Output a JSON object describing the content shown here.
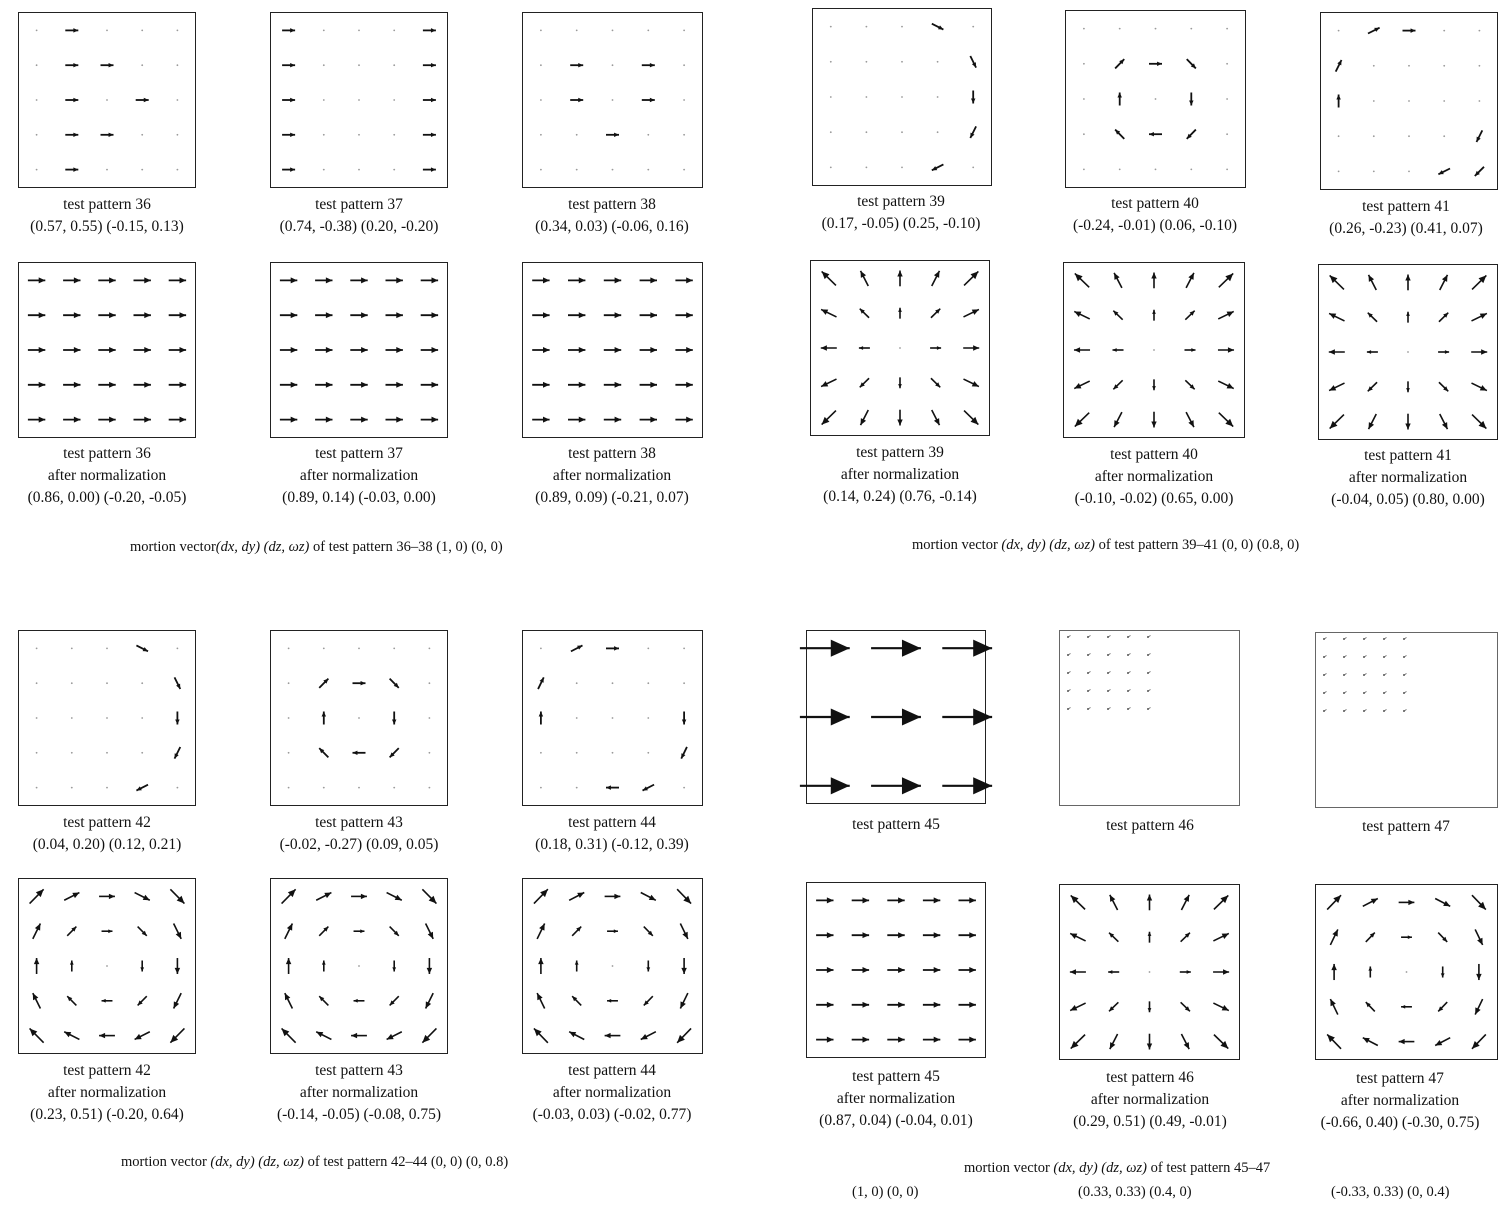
{
  "panels": [
    {
      "id": "p36",
      "title": "test pattern 36",
      "sub": "",
      "vec": "(0.57, 0.55) (-0.15, 0.13)",
      "field": {
        "grid": 5,
        "mode": "sparse",
        "cells": [
          [
            0,
            1
          ],
          [
            1,
            1
          ],
          [
            1,
            2
          ],
          [
            2,
            1
          ],
          [
            2,
            3
          ],
          [
            3,
            1
          ],
          [
            3,
            2
          ],
          [
            4,
            1
          ]
        ],
        "dir": [
          1,
          0
        ]
      }
    },
    {
      "id": "p37",
      "title": "test pattern 37",
      "sub": "",
      "vec": "(0.74, -0.38) (0.20, -0.20)",
      "field": {
        "grid": 5,
        "mode": "sparse",
        "cells": [
          [
            0,
            0
          ],
          [
            0,
            4
          ],
          [
            1,
            0
          ],
          [
            1,
            4
          ],
          [
            2,
            0
          ],
          [
            2,
            4
          ],
          [
            3,
            0
          ],
          [
            3,
            4
          ],
          [
            4,
            0
          ],
          [
            4,
            4
          ]
        ],
        "dir": [
          1,
          0
        ]
      }
    },
    {
      "id": "p38",
      "title": "test pattern 38",
      "sub": "",
      "vec": "(0.34, 0.03) (-0.06, 0.16)",
      "field": {
        "grid": 5,
        "mode": "sparse",
        "cells": [
          [
            1,
            1
          ],
          [
            1,
            3
          ],
          [
            2,
            1
          ],
          [
            2,
            3
          ],
          [
            3,
            2
          ]
        ],
        "dir": [
          1,
          0
        ]
      }
    },
    {
      "id": "p39",
      "title": "test pattern 39",
      "sub": "",
      "vec": "(0.17, -0.05) (0.25, -0.10)",
      "field": {
        "grid": 5,
        "mode": "rot-sparse",
        "cells": [
          [
            0,
            3
          ],
          [
            1,
            4
          ],
          [
            2,
            4
          ],
          [
            3,
            4
          ],
          [
            4,
            3
          ]
        ]
      }
    },
    {
      "id": "p40",
      "title": "test pattern 40",
      "sub": "",
      "vec": "(-0.24, -0.01) (0.06, -0.10)",
      "field": {
        "grid": 5,
        "mode": "rot-sparse",
        "cells": [
          [
            1,
            1
          ],
          [
            1,
            2
          ],
          [
            1,
            3
          ],
          [
            2,
            1
          ],
          [
            2,
            3
          ],
          [
            3,
            1
          ],
          [
            3,
            2
          ],
          [
            3,
            3
          ]
        ]
      }
    },
    {
      "id": "p41",
      "title": "test pattern 41",
      "sub": "",
      "vec": "(0.26, -0.23) (0.41, 0.07)",
      "field": {
        "grid": 5,
        "mode": "rot-sparse",
        "cells": [
          [
            0,
            1
          ],
          [
            0,
            2
          ],
          [
            1,
            0
          ],
          [
            2,
            0
          ],
          [
            3,
            4
          ],
          [
            4,
            3
          ],
          [
            4,
            4
          ]
        ]
      }
    },
    {
      "id": "p36n",
      "title": "test pattern 36",
      "sub": "after normalization",
      "vec": "(0.86, 0.00) (-0.20, -0.05)",
      "field": {
        "grid": 5,
        "mode": "full",
        "dir": [
          1,
          0
        ]
      }
    },
    {
      "id": "p37n",
      "title": "test pattern 37",
      "sub": "after normalization",
      "vec": "(0.89, 0.14) (-0.03, 0.00)",
      "field": {
        "grid": 5,
        "mode": "full",
        "dir": [
          1,
          0
        ]
      }
    },
    {
      "id": "p38n",
      "title": "test pattern 38",
      "sub": "after normalization",
      "vec": "(0.89, 0.09) (-0.21, 0.07)",
      "field": {
        "grid": 5,
        "mode": "full",
        "dir": [
          1,
          0
        ]
      }
    },
    {
      "id": "p39n",
      "title": "test pattern 39",
      "sub": "after normalization",
      "vec": "(0.14, 0.24) (0.76, -0.14)",
      "field": {
        "grid": 5,
        "mode": "zoom"
      }
    },
    {
      "id": "p40n",
      "title": "test pattern 40",
      "sub": "after normalization",
      "vec": "(-0.10, -0.02) (0.65, 0.00)",
      "field": {
        "grid": 5,
        "mode": "zoom"
      }
    },
    {
      "id": "p41n",
      "title": "test pattern 41",
      "sub": "after normalization",
      "vec": "(-0.04, 0.05) (0.80, 0.00)",
      "field": {
        "grid": 5,
        "mode": "zoom"
      }
    },
    {
      "id": "p42",
      "title": "test pattern 42",
      "sub": "",
      "vec": "(0.04, 0.20) (0.12, 0.21)",
      "field": {
        "grid": 5,
        "mode": "rot-sparse",
        "cells": [
          [
            0,
            3
          ],
          [
            1,
            4
          ],
          [
            2,
            4
          ],
          [
            3,
            4
          ],
          [
            4,
            3
          ]
        ]
      }
    },
    {
      "id": "p43",
      "title": "test pattern 43",
      "sub": "",
      "vec": "(-0.02, -0.27) (0.09, 0.05)",
      "field": {
        "grid": 5,
        "mode": "rot-sparse",
        "cells": [
          [
            1,
            1
          ],
          [
            1,
            2
          ],
          [
            1,
            3
          ],
          [
            2,
            1
          ],
          [
            2,
            3
          ],
          [
            3,
            1
          ],
          [
            3,
            2
          ],
          [
            3,
            3
          ]
        ]
      }
    },
    {
      "id": "p44",
      "title": "test pattern 44",
      "sub": "",
      "vec": "(0.18, 0.31) (-0.12, 0.39)",
      "field": {
        "grid": 5,
        "mode": "rot-sparse",
        "cells": [
          [
            0,
            1
          ],
          [
            0,
            2
          ],
          [
            1,
            0
          ],
          [
            2,
            0
          ],
          [
            2,
            4
          ],
          [
            3,
            4
          ],
          [
            4,
            2
          ],
          [
            4,
            3
          ]
        ]
      }
    },
    {
      "id": "p45",
      "title": "test pattern 45",
      "sub": "",
      "vec": "",
      "field": {
        "grid": 3,
        "mode": "full",
        "dir": [
          1,
          0
        ],
        "len": 0.7
      }
    },
    {
      "id": "p46",
      "title": "test pattern 46",
      "sub": "",
      "vec": "",
      "field": {
        "grid": 5,
        "mode": "tiny",
        "corner": "tl"
      }
    },
    {
      "id": "p47",
      "title": "test pattern 47",
      "sub": "",
      "vec": "",
      "field": {
        "grid": 5,
        "mode": "tiny",
        "corner": "tl"
      }
    },
    {
      "id": "p42n",
      "title": "test pattern 42",
      "sub": "after normalization",
      "vec": "(0.23, 0.51) (-0.20, 0.64)",
      "field": {
        "grid": 5,
        "mode": "rot"
      }
    },
    {
      "id": "p43n",
      "title": "test pattern 43",
      "sub": "after normalization",
      "vec": "(-0.14, -0.05) (-0.08, 0.75)",
      "field": {
        "grid": 5,
        "mode": "rot"
      }
    },
    {
      "id": "p44n",
      "title": "test pattern 44",
      "sub": "after normalization",
      "vec": "(-0.03, 0.03) (-0.02, 0.77)",
      "field": {
        "grid": 5,
        "mode": "rot"
      }
    },
    {
      "id": "p45n",
      "title": "test pattern 45",
      "sub": "after normalization",
      "vec": "(0.87, 0.04) (-0.04, 0.01)",
      "field": {
        "grid": 5,
        "mode": "full",
        "dir": [
          1,
          0
        ]
      }
    },
    {
      "id": "p46n",
      "title": "test pattern 46",
      "sub": "after normalization",
      "vec": "(0.29, 0.51) (0.49, -0.01)",
      "field": {
        "grid": 5,
        "mode": "zoom"
      }
    },
    {
      "id": "p47n",
      "title": "test pattern 47",
      "sub": "after normalization",
      "vec": "(-0.66, 0.40) (-0.30, 0.75)",
      "field": {
        "grid": 5,
        "mode": "rot"
      }
    }
  ],
  "captions": {
    "g1": {
      "pre": "mortion vector",
      "vars": "(dx, dy) (dz, ωz)",
      "post": " of test pattern 36–38  (1, 0) (0, 0)"
    },
    "g2": {
      "pre": "mortion vector ",
      "vars": "(dx, dy) (dz, ωz)",
      "post": " of test pattern 39–41  (0, 0) (0.8, 0)"
    },
    "g3": {
      "pre": "mortion vector ",
      "vars": "(dx, dy) (dz, ωz)",
      "post": " of test pattern 42–44  (0, 0) (0, 0.8)"
    },
    "g4": {
      "pre": "mortion vector ",
      "vars": "(dx, dy) (dz, ωz)",
      "post": " of test pattern 45–47"
    },
    "g4_45": "(1, 0) (0, 0)",
    "g4_46": "(0.33, 0.33) (0.4, 0)",
    "g4_47": "(-0.33, 0.33) (0, 0.4)"
  }
}
